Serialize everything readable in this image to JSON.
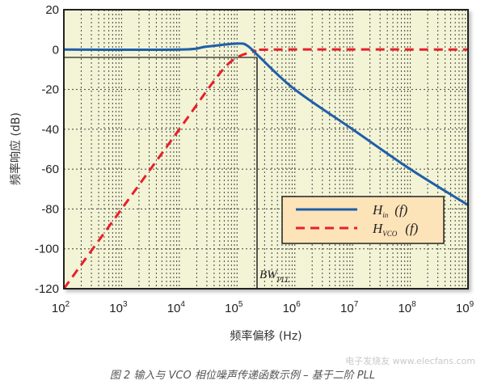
{
  "chart_data": {
    "type": "line",
    "title": "",
    "xlabel": "频率偏移 (Hz)",
    "ylabel": "频率响应 (dB)",
    "xscale": "log",
    "xlim": [
      100,
      1000000000
    ],
    "ylim": [
      -120,
      20
    ],
    "x_ticks": [
      "10^2",
      "10^3",
      "10^4",
      "10^5",
      "10^6",
      "10^7",
      "10^8",
      "10^9"
    ],
    "x_tick_bases": [
      "10",
      "10",
      "10",
      "10",
      "10",
      "10",
      "10",
      "10"
    ],
    "x_tick_exps": [
      "2",
      "3",
      "4",
      "5",
      "6",
      "7",
      "8",
      "9"
    ],
    "y_ticks": [
      "20",
      "0",
      "-20",
      "-40",
      "-60",
      "-80",
      "-100",
      "-120"
    ],
    "grid": true,
    "legend_position": "lower right",
    "series": [
      {
        "name": "H_in (f)",
        "color": "#1f5fa8",
        "style": "solid",
        "points": [
          [
            100,
            0
          ],
          [
            10000,
            0
          ],
          [
            30000,
            1.5
          ],
          [
            100000,
            3
          ],
          [
            150000,
            2
          ],
          [
            250000,
            -4
          ],
          [
            1000000,
            -20
          ],
          [
            10000000,
            -40
          ],
          [
            100000000,
            -60
          ],
          [
            1000000000,
            -78
          ]
        ]
      },
      {
        "name": "H_VCO (f)",
        "color": "#e8202a",
        "style": "dashed",
        "points": [
          [
            100,
            -120
          ],
          [
            1000,
            -80
          ],
          [
            10000,
            -40
          ],
          [
            50000,
            -12
          ],
          [
            100000,
            -4
          ],
          [
            200000,
            -1
          ],
          [
            400000,
            0
          ],
          [
            1000000000,
            0
          ]
        ]
      }
    ],
    "annotations": [
      {
        "text": "BW_PLL",
        "x": 220000,
        "type": "vertical_line"
      },
      {
        "text": "-3 dB reference",
        "y": -3,
        "type": "horizontal_line"
      }
    ]
  },
  "legend": {
    "items": [
      {
        "main": "H",
        "sub": "in",
        "arg": "(f)",
        "color": "#1f5fa8"
      },
      {
        "main": "H",
        "sub": "VCO",
        "arg": "(f)",
        "color": "#e8202a"
      }
    ]
  },
  "annotation": {
    "bw_main": "BW",
    "bw_sub": "PLL"
  },
  "axes": {
    "xlabel": "频率偏移 (Hz)",
    "ylabel": "频率响应 (dB)"
  },
  "caption": "图 2    输入与 VCO 相位噪声传递函数示例 – 基于二阶 PLL",
  "watermark": "电子发烧友 www.elecfans.com",
  "colors": {
    "plot_bg": "#f3f4d6",
    "legend_bg": "#fde3b8",
    "hin": "#1f5fa8",
    "hvco": "#e8202a"
  }
}
